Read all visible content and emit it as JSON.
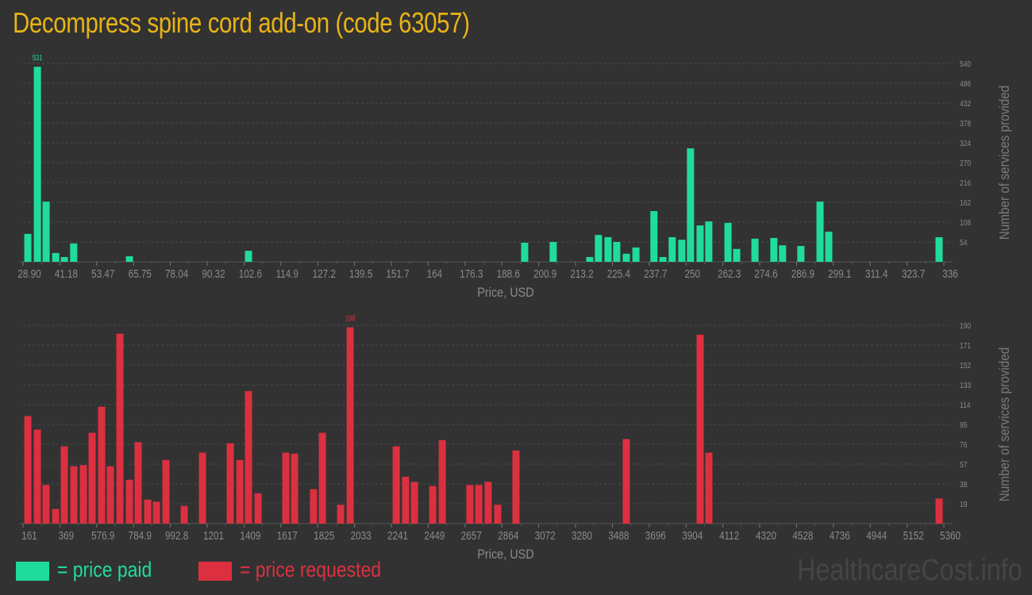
{
  "title": "Decompress spine cord add-on (code 63057)",
  "legend": {
    "paid_label": "= price paid",
    "requested_label": "= price requested",
    "paid_color": "#20dc9c",
    "requested_color": "#dc3040"
  },
  "watermark": "HealthcareCost.info",
  "chart_data": [
    {
      "type": "bar",
      "name": "price paid",
      "color": "#20dc9c",
      "xlabel": "Price, USD",
      "ylabel": "Number of services provided",
      "xlim": [
        28.9,
        336
      ],
      "ylim": [
        0,
        540
      ],
      "grid": true,
      "bin_width": 3.07,
      "x_tick_labels": [
        "28.90",
        "41.18",
        "53.47",
        "65.75",
        "78.04",
        "90.32",
        "102.6",
        "114.9",
        "127.2",
        "139.5",
        "151.7",
        "164",
        "176.3",
        "188.6",
        "200.9",
        "213.2",
        "225.4",
        "237.7",
        "250",
        "262.3",
        "274.6",
        "286.9",
        "299.1",
        "311.4",
        "323.7",
        "336"
      ],
      "y_tick_labels": [
        "54",
        "108",
        "162",
        "216",
        "270",
        "324",
        "378",
        "432",
        "486",
        "540"
      ],
      "peak_label": "531",
      "x": [
        30.5,
        33.7,
        36.6,
        39.8,
        42.7,
        45.8,
        64.4,
        104.1,
        196.2,
        205.7,
        217.9,
        220.8,
        224.0,
        226.9,
        230.1,
        233.3,
        239.3,
        242.3,
        245.4,
        248.6,
        251.5,
        254.7,
        257.6,
        264.0,
        266.9,
        273.0,
        279.3,
        282.2,
        288.3,
        294.7,
        297.6,
        334.4
      ],
      "values": [
        76,
        531,
        164,
        24,
        13,
        50,
        15,
        30,
        52,
        54,
        13,
        73,
        67,
        54,
        22,
        39,
        138,
        13,
        67,
        60,
        309,
        99,
        110,
        106,
        35,
        63,
        65,
        45,
        43,
        164,
        82,
        67
      ]
    },
    {
      "type": "bar",
      "name": "price requested",
      "color": "#dc3040",
      "xlabel": "Price, USD",
      "ylabel": "Number of services provided",
      "xlim": [
        161,
        5360
      ],
      "ylim": [
        0,
        190
      ],
      "grid": true,
      "bin_width": 52,
      "x_tick_labels": [
        "161",
        "369",
        "576.9",
        "784.9",
        "992.8",
        "1201",
        "1409",
        "1617",
        "1825",
        "2033",
        "2241",
        "2449",
        "2657",
        "2864",
        "3072",
        "3280",
        "3488",
        "3696",
        "3904",
        "4112",
        "4320",
        "4528",
        "4736",
        "4944",
        "5152",
        "5360"
      ],
      "y_tick_labels": [
        "19",
        "38",
        "57",
        "76",
        "95",
        "114",
        "133",
        "152",
        "171",
        "190"
      ],
      "peak_label": "188",
      "x": [
        188,
        242,
        291,
        345,
        394,
        448,
        502,
        551,
        605,
        654,
        708,
        762,
        811,
        865,
        914,
        968,
        1071,
        1174,
        1331,
        1385,
        1434,
        1488,
        1645,
        1694,
        1801,
        1851,
        1954,
        2008,
        2268,
        2321,
        2371,
        2474,
        2528,
        2684,
        2734,
        2787,
        2841,
        2944,
        3567,
        3984,
        4033,
        5333
      ],
      "values": [
        103,
        90,
        37,
        14,
        74,
        55,
        56,
        87,
        112,
        55,
        182,
        42,
        78,
        23,
        21,
        61,
        17,
        68,
        77,
        61,
        127,
        29,
        68,
        67,
        33,
        87,
        18,
        188,
        74,
        45,
        40,
        36,
        80,
        37,
        37,
        40,
        18,
        70,
        81,
        181,
        68,
        24
      ]
    }
  ]
}
